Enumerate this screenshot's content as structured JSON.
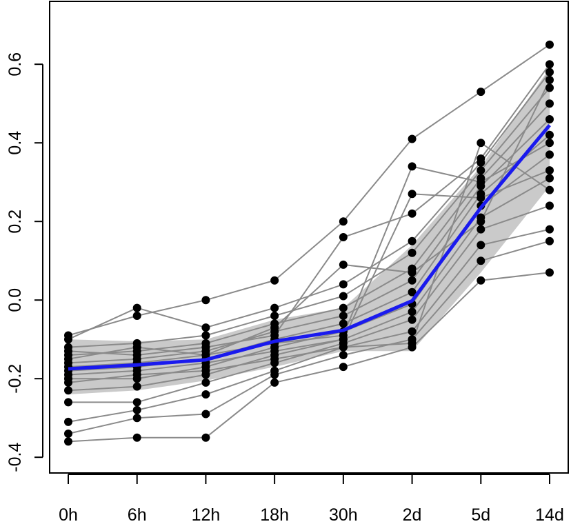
{
  "chart_data": {
    "type": "line",
    "title": "",
    "xlabel": "",
    "ylabel": "",
    "categories": [
      "0h",
      "6h",
      "12h",
      "18h",
      "30h",
      "2d",
      "5d",
      "14d"
    ],
    "yticks": [
      "-0.4",
      "-0.2",
      "0.0",
      "0.2",
      "0.4",
      "0.6"
    ],
    "ylim": [
      -0.44,
      0.76
    ],
    "grid": false,
    "legend": "none",
    "colors": {
      "profiles": "#8a8a8a",
      "band": "#b8b8b8",
      "points": "#000000",
      "mean": "#1a1aee"
    },
    "mean_series": {
      "name": "",
      "values": [
        -0.175,
        -0.165,
        -0.152,
        -0.105,
        -0.077,
        -0.002,
        0.235,
        0.445
      ]
    },
    "band": {
      "lower": [
        -0.24,
        -0.23,
        -0.205,
        -0.17,
        -0.13,
        -0.13,
        0.07,
        0.29
      ],
      "upper": [
        -0.1,
        -0.105,
        -0.1,
        -0.05,
        -0.02,
        0.14,
        0.34,
        0.59
      ]
    },
    "profiles": [
      [
        -0.36,
        -0.35,
        -0.35,
        -0.21,
        -0.17,
        -0.12,
        0.05,
        0.07
      ],
      [
        -0.34,
        -0.3,
        -0.29,
        -0.19,
        -0.14,
        -0.1,
        0.1,
        0.15
      ],
      [
        -0.31,
        -0.28,
        -0.24,
        -0.18,
        -0.12,
        -0.08,
        0.14,
        0.18
      ],
      [
        -0.26,
        -0.26,
        -0.21,
        -0.16,
        -0.11,
        -0.05,
        0.18,
        0.24
      ],
      [
        -0.23,
        -0.22,
        -0.19,
        -0.14,
        -0.1,
        -0.03,
        0.21,
        0.31
      ],
      [
        -0.2,
        -0.2,
        -0.17,
        -0.12,
        -0.08,
        -0.01,
        0.24,
        0.37
      ],
      [
        -0.18,
        -0.17,
        -0.15,
        -0.1,
        -0.06,
        0.02,
        0.27,
        0.42
      ],
      [
        -0.16,
        -0.15,
        -0.13,
        -0.08,
        -0.04,
        0.05,
        0.29,
        0.46
      ],
      [
        -0.14,
        -0.13,
        -0.11,
        -0.06,
        -0.02,
        0.08,
        0.31,
        0.5
      ],
      [
        -0.12,
        -0.11,
        -0.09,
        -0.04,
        0.01,
        0.12,
        0.33,
        0.54
      ],
      [
        -0.1,
        -0.02,
        -0.07,
        -0.02,
        0.04,
        0.15,
        0.35,
        0.58
      ],
      [
        -0.09,
        -0.04,
        0.0,
        0.05,
        0.2,
        0.41,
        0.53,
        0.65
      ],
      [
        -0.15,
        -0.12,
        -0.14,
        -0.11,
        -0.09,
        0.34,
        0.3,
        0.4
      ],
      [
        -0.19,
        -0.18,
        -0.16,
        -0.13,
        -0.1,
        0.27,
        0.26,
        0.33
      ],
      [
        -0.21,
        -0.19,
        -0.18,
        -0.15,
        -0.12,
        -0.11,
        0.4,
        0.28
      ],
      [
        -0.13,
        -0.14,
        -0.12,
        -0.09,
        0.16,
        0.22,
        0.36,
        0.6
      ],
      [
        -0.17,
        -0.16,
        -0.14,
        -0.07,
        0.09,
        0.07,
        0.2,
        0.56
      ]
    ]
  }
}
